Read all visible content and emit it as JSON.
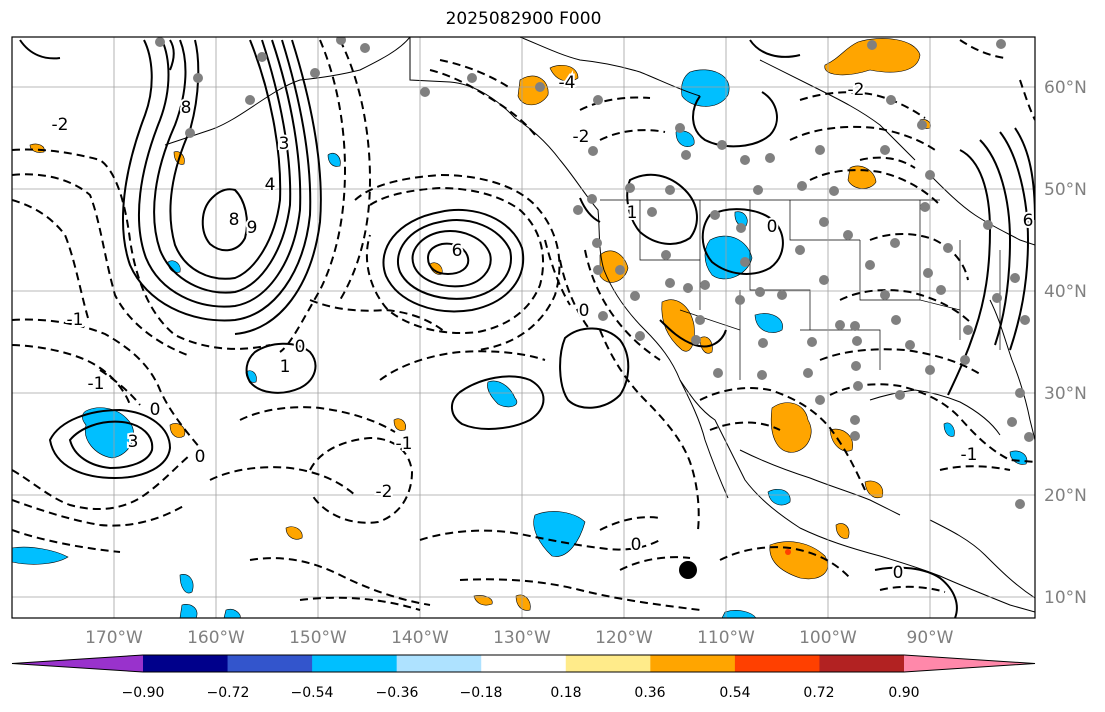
{
  "title": "2025082900 F000",
  "map": {
    "lon_labels": [
      "170°W",
      "160°W",
      "150°W",
      "140°W",
      "130°W",
      "120°W",
      "110°W",
      "100°W",
      "90°W"
    ],
    "lat_labels": [
      "60°N",
      "50°N",
      "40°N",
      "30°N",
      "20°N",
      "10°N"
    ],
    "contour_labels": [
      "-1",
      "-1",
      "-1",
      "-1",
      "-2",
      "-2",
      "-2",
      "-2",
      "-4",
      "0",
      "0",
      "0",
      "0",
      "0",
      "0",
      "0",
      "1",
      "1",
      "3",
      "3",
      "4",
      "6",
      "6",
      "8",
      "8",
      "9"
    ]
  },
  "colorbar": {
    "ticks": [
      "−0.90",
      "−0.72",
      "−0.54",
      "−0.36",
      "−0.18",
      "0.18",
      "0.36",
      "0.54",
      "0.72",
      "0.90"
    ],
    "colors": [
      "#9932cc",
      "#00008b",
      "#3355cc",
      "#00bfff",
      "#aee2ff",
      "#ffffff",
      "#ffeb8a",
      "#ffa500",
      "#ff4000",
      "#b22222",
      "#ff88aa"
    ]
  }
}
